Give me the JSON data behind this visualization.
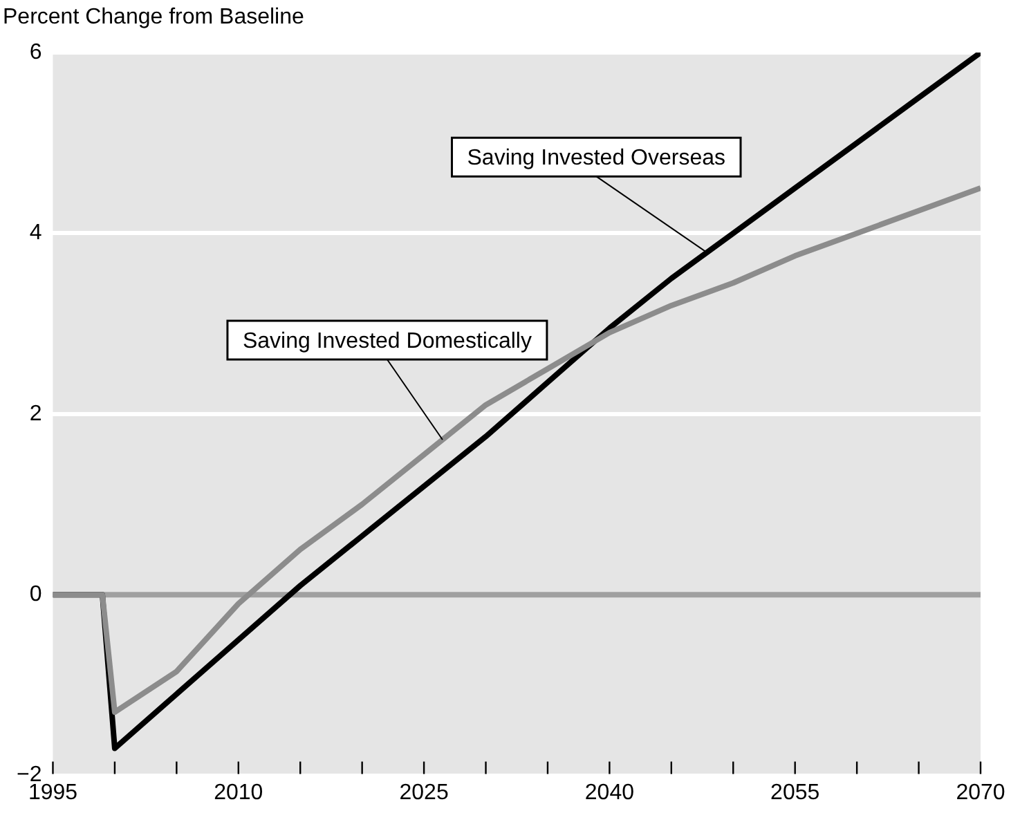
{
  "chart_data": {
    "type": "line",
    "ylabel": "Percent Change from Baseline",
    "xlim": [
      1995,
      2070
    ],
    "xticks": [
      1995,
      {
        "value": 2000,
        "label": null
      },
      {
        "value": 2005,
        "label": null
      },
      2010,
      {
        "value": 2015,
        "label": null
      },
      {
        "value": 2020,
        "label": null
      },
      2025,
      {
        "value": 2030,
        "label": null
      },
      {
        "value": 2035,
        "label": null
      },
      2040,
      {
        "value": 2045,
        "label": null
      },
      {
        "value": 2050,
        "label": null
      },
      2055,
      {
        "value": 2060,
        "label": null
      },
      {
        "value": 2065,
        "label": null
      },
      2070
    ],
    "ylim": [
      -2,
      6
    ],
    "yticks": [
      {
        "value": -2,
        "label": "−2"
      },
      0,
      2,
      4,
      6
    ],
    "grid": "y",
    "legend": false,
    "marker": "none",
    "line_style": "solid",
    "ref_lines": [
      {
        "axis": "y",
        "value": 0,
        "color": "#a0a0a0"
      }
    ],
    "series": [
      {
        "name": "Saving Invested Domestically",
        "color": "#8c8c8c",
        "x": [
          1995,
          1999,
          2000,
          2005,
          2010,
          2015,
          2020,
          2025,
          2030,
          2035,
          2040,
          2045,
          2050,
          2055,
          2060,
          2065,
          2070
        ],
        "values": [
          0,
          0,
          -1.3,
          -0.85,
          -0.1,
          0.5,
          1.0,
          1.55,
          2.1,
          2.5,
          2.9,
          3.2,
          3.45,
          3.75,
          4.0,
          4.25,
          4.5
        ]
      },
      {
        "name": "Saving Invested Overseas",
        "color": "#000000",
        "x": [
          1995,
          1999,
          2000,
          2005,
          2010,
          2015,
          2020,
          2025,
          2030,
          2035,
          2040,
          2045,
          2050,
          2055,
          2060,
          2065,
          2070
        ],
        "values": [
          0,
          0,
          -1.7,
          -1.1,
          -0.5,
          0.1,
          0.65,
          1.2,
          1.75,
          2.35,
          2.95,
          3.5,
          4.0,
          4.5,
          5.0,
          5.5,
          6.0
        ]
      }
    ]
  }
}
